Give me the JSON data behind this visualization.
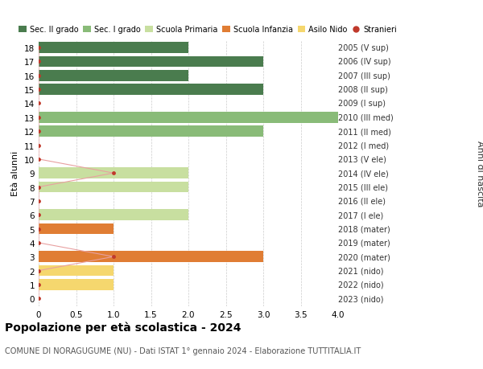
{
  "ages": [
    18,
    17,
    16,
    15,
    14,
    13,
    12,
    11,
    10,
    9,
    8,
    7,
    6,
    5,
    4,
    3,
    2,
    1,
    0
  ],
  "right_labels": [
    "2005 (V sup)",
    "2006 (IV sup)",
    "2007 (III sup)",
    "2008 (II sup)",
    "2009 (I sup)",
    "2010 (III med)",
    "2011 (II med)",
    "2012 (I med)",
    "2013 (V ele)",
    "2014 (IV ele)",
    "2015 (III ele)",
    "2016 (II ele)",
    "2017 (I ele)",
    "2018 (mater)",
    "2019 (mater)",
    "2020 (mater)",
    "2021 (nido)",
    "2022 (nido)",
    "2023 (nido)"
  ],
  "bars": [
    {
      "age": 18,
      "value": 2,
      "color": "#4a7c4e"
    },
    {
      "age": 17,
      "value": 3,
      "color": "#4a7c4e"
    },
    {
      "age": 16,
      "value": 2,
      "color": "#4a7c4e"
    },
    {
      "age": 15,
      "value": 3,
      "color": "#4a7c4e"
    },
    {
      "age": 14,
      "value": 0,
      "color": "#4a7c4e"
    },
    {
      "age": 13,
      "value": 4.0,
      "color": "#89bb78"
    },
    {
      "age": 12,
      "value": 3,
      "color": "#89bb78"
    },
    {
      "age": 11,
      "value": 0,
      "color": "#89bb78"
    },
    {
      "age": 10,
      "value": 0,
      "color": "#c8dfa0"
    },
    {
      "age": 9,
      "value": 2,
      "color": "#c8dfa0"
    },
    {
      "age": 8,
      "value": 2,
      "color": "#c8dfa0"
    },
    {
      "age": 7,
      "value": 0,
      "color": "#c8dfa0"
    },
    {
      "age": 6,
      "value": 2,
      "color": "#c8dfa0"
    },
    {
      "age": 5,
      "value": 1,
      "color": "#e07d34"
    },
    {
      "age": 4,
      "value": 0,
      "color": "#e07d34"
    },
    {
      "age": 3,
      "value": 3,
      "color": "#e07d34"
    },
    {
      "age": 2,
      "value": 1,
      "color": "#f5d76e"
    },
    {
      "age": 1,
      "value": 1,
      "color": "#f5d76e"
    },
    {
      "age": 0,
      "value": 0,
      "color": "#f5d76e"
    }
  ],
  "stranieri_points": [
    {
      "age": 18,
      "value": 0
    },
    {
      "age": 17,
      "value": 0
    },
    {
      "age": 16,
      "value": 0
    },
    {
      "age": 15,
      "value": 0
    },
    {
      "age": 14,
      "value": 0
    },
    {
      "age": 13,
      "value": 0
    },
    {
      "age": 12,
      "value": 0
    },
    {
      "age": 11,
      "value": 0
    },
    {
      "age": 10,
      "value": 0
    },
    {
      "age": 9,
      "value": 1
    },
    {
      "age": 8,
      "value": 0
    },
    {
      "age": 7,
      "value": 0
    },
    {
      "age": 6,
      "value": 0
    },
    {
      "age": 5,
      "value": 0
    },
    {
      "age": 4,
      "value": 0
    },
    {
      "age": 3,
      "value": 1
    },
    {
      "age": 2,
      "value": 0
    },
    {
      "age": 1,
      "value": 0
    },
    {
      "age": 0,
      "value": 0
    }
  ],
  "legend_labels": [
    "Sec. II grado",
    "Sec. I grado",
    "Scuola Primaria",
    "Scuola Infanzia",
    "Asilo Nido",
    "Stranieri"
  ],
  "legend_colors": [
    "#4a7c4e",
    "#89bb78",
    "#c8dfa0",
    "#e07d34",
    "#f5d76e",
    "#c0392b"
  ],
  "xlabel": "Età alunni",
  "ylabel": "Anni di nascita",
  "title": "Popolazione per età scolastica - 2024",
  "subtitle": "COMUNE DI NORAGUGUME (NU) - Dati ISTAT 1° gennaio 2024 - Elaborazione TUTTITALIA.IT",
  "xlim": [
    0,
    4.0
  ],
  "xticks": [
    0,
    0.5,
    1.0,
    1.5,
    2.0,
    2.5,
    3.0,
    3.5,
    4.0
  ],
  "xticklabels": [
    "0",
    "0.5",
    "1.0",
    "1.5",
    "2.0",
    "2.5",
    "3.0",
    "3.5",
    "4.0"
  ],
  "bg_color": "#ffffff",
  "grid_color": "#cccccc",
  "stranieri_color": "#c0392b",
  "stranieri_line_color": "#e8a0a0",
  "bar_height": 0.78
}
